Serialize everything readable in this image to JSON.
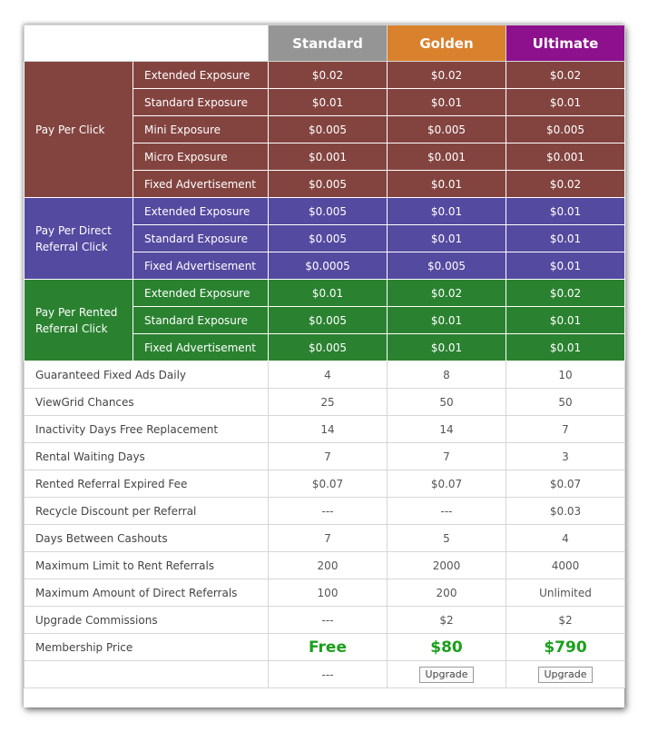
{
  "plans": [
    "Standard",
    "Golden",
    "Ultimate"
  ],
  "colors": {
    "standard": "#959595",
    "golden": "#d9812c",
    "ultimate": "#8d118d",
    "ppc": "#834440",
    "direct": "#544aa0",
    "rented": "#2a8230",
    "price": "#1ba01b"
  },
  "groups": [
    {
      "label": "Pay Per Click",
      "rows": [
        {
          "name": "Extended Exposure",
          "values": [
            "$0.02",
            "$0.02",
            "$0.02"
          ]
        },
        {
          "name": "Standard Exposure",
          "values": [
            "$0.01",
            "$0.01",
            "$0.01"
          ]
        },
        {
          "name": "Mini Exposure",
          "values": [
            "$0.005",
            "$0.005",
            "$0.005"
          ]
        },
        {
          "name": "Micro Exposure",
          "values": [
            "$0.001",
            "$0.001",
            "$0.001"
          ]
        },
        {
          "name": "Fixed Advertisement",
          "values": [
            "$0.005",
            "$0.01",
            "$0.02"
          ]
        }
      ]
    },
    {
      "label": "Pay Per Direct Referral Click",
      "rows": [
        {
          "name": "Extended Exposure",
          "values": [
            "$0.005",
            "$0.01",
            "$0.01"
          ]
        },
        {
          "name": "Standard Exposure",
          "values": [
            "$0.005",
            "$0.01",
            "$0.01"
          ]
        },
        {
          "name": "Fixed Advertisement",
          "values": [
            "$0.0005",
            "$0.005",
            "$0.01"
          ]
        }
      ]
    },
    {
      "label": "Pay Per Rented Referral Click",
      "rows": [
        {
          "name": "Extended Exposure",
          "values": [
            "$0.01",
            "$0.02",
            "$0.02"
          ]
        },
        {
          "name": "Standard Exposure",
          "values": [
            "$0.005",
            "$0.01",
            "$0.01"
          ]
        },
        {
          "name": "Fixed Advertisement",
          "values": [
            "$0.005",
            "$0.01",
            "$0.01"
          ]
        }
      ]
    }
  ],
  "features": [
    {
      "name": "Guaranteed Fixed Ads Daily",
      "values": [
        "4",
        "8",
        "10"
      ]
    },
    {
      "name": "ViewGrid Chances",
      "values": [
        "25",
        "50",
        "50"
      ]
    },
    {
      "name": "Inactivity Days Free Replacement",
      "values": [
        "14",
        "14",
        "7"
      ]
    },
    {
      "name": "Rental Waiting Days",
      "values": [
        "7",
        "7",
        "3"
      ]
    },
    {
      "name": "Rented Referral Expired Fee",
      "values": [
        "$0.07",
        "$0.07",
        "$0.07"
      ]
    },
    {
      "name": "Recycle Discount per Referral",
      "values": [
        "---",
        "---",
        "$0.03"
      ]
    },
    {
      "name": "Days Between Cashouts",
      "values": [
        "7",
        "5",
        "4"
      ]
    },
    {
      "name": "Maximum Limit to Rent Referrals",
      "values": [
        "200",
        "2000",
        "4000"
      ]
    },
    {
      "name": "Maximum Amount of Direct Referrals",
      "values": [
        "100",
        "200",
        "Unlimited"
      ]
    },
    {
      "name": "Upgrade Commissions",
      "values": [
        "---",
        "$2",
        "$2"
      ]
    }
  ],
  "price": {
    "name": "Membership Price",
    "values": [
      "Free",
      "$80",
      "$790"
    ]
  },
  "actions": {
    "standard": "---",
    "golden": "Upgrade",
    "ultimate": "Upgrade"
  }
}
